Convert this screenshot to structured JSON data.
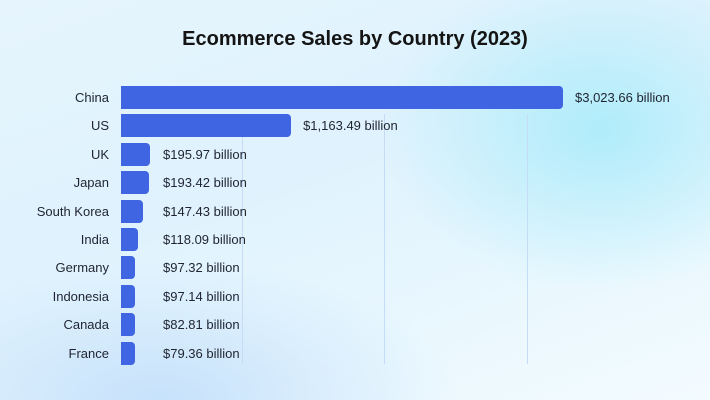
{
  "chart_data": {
    "type": "bar",
    "orientation": "horizontal",
    "title": "Ecommerce Sales by Country (2023)",
    "xlabel": "",
    "ylabel": "",
    "categories": [
      "China",
      "US",
      "UK",
      "Japan",
      "South Korea",
      "India",
      "Germany",
      "Indonesia",
      "Canada",
      "France"
    ],
    "values": [
      3023.66,
      1163.49,
      195.97,
      193.42,
      147.43,
      118.09,
      97.32,
      97.14,
      82.81,
      79.36
    ],
    "value_labels": [
      "$3,023.66 billion",
      "$1,163.49 billion",
      "$195.97 billion",
      "$193.42 billion",
      "$147.43 billion",
      "$118.09 billion",
      "$97.32 billion",
      "$97.14 billion",
      "$82.81 billion",
      "$79.36 billion"
    ],
    "unit": "billion USD",
    "grid": true,
    "bar_color": "#4065e2"
  }
}
